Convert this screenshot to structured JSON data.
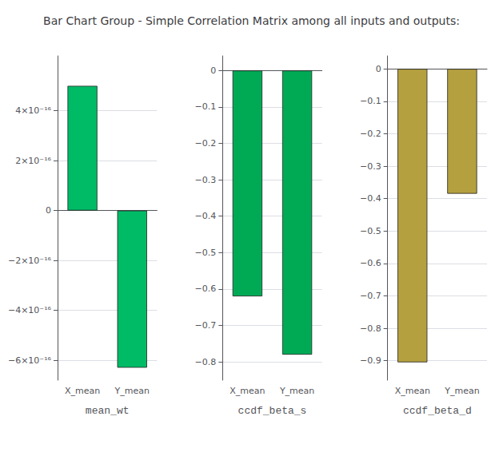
{
  "title": "Bar Chart Group - Simple Correlation Matrix among all inputs and outputs:",
  "chart_data": [
    {
      "type": "bar",
      "xlabel": "mean_wt",
      "categories": [
        "X_mean",
        "Y_mean"
      ],
      "values": [
        5e-16,
        -6.3e-16
      ],
      "color": "#00BB66",
      "ylim": [
        -6.8e-16,
        6.2e-16
      ],
      "yticks": [
        {
          "value": -6e-16,
          "label": "−6×10⁻¹⁶"
        },
        {
          "value": -4e-16,
          "label": "−4×10⁻¹⁶"
        },
        {
          "value": -2e-16,
          "label": "−2×10⁻¹⁶"
        },
        0,
        {
          "value": 2e-16,
          "label": "2×10⁻¹⁶"
        },
        {
          "value": 4e-16,
          "label": "4×10⁻¹⁶"
        }
      ],
      "grid": true
    },
    {
      "type": "bar",
      "xlabel": "ccdf_beta_s",
      "categories": [
        "X_mean",
        "Y_mean"
      ],
      "values": [
        -0.62,
        -0.78
      ],
      "color": "#00AA55",
      "ylim": [
        -0.85,
        0.04
      ],
      "yticks": [
        {
          "value": -0.8,
          "label": "−0.8"
        },
        {
          "value": -0.7,
          "label": "−0.7"
        },
        {
          "value": -0.6,
          "label": "−0.6"
        },
        {
          "value": -0.5,
          "label": "−0.5"
        },
        {
          "value": -0.4,
          "label": "−0.4"
        },
        {
          "value": -0.3,
          "label": "−0.3"
        },
        {
          "value": -0.2,
          "label": "−0.2"
        },
        {
          "value": -0.1,
          "label": "−0.1"
        },
        0
      ],
      "grid": true
    },
    {
      "type": "bar",
      "xlabel": "ccdf_beta_d",
      "categories": [
        "X_mean",
        "Y_mean"
      ],
      "values": [
        -0.905,
        -0.385
      ],
      "color": "#B5A040",
      "ylim": [
        -0.96,
        0.04
      ],
      "yticks": [
        {
          "value": -0.9,
          "label": "−0.9"
        },
        {
          "value": -0.8,
          "label": "−0.8"
        },
        {
          "value": -0.7,
          "label": "−0.7"
        },
        {
          "value": -0.6,
          "label": "−0.6"
        },
        {
          "value": -0.5,
          "label": "−0.5"
        },
        {
          "value": -0.4,
          "label": "−0.4"
        },
        {
          "value": -0.3,
          "label": "−0.3"
        },
        {
          "value": -0.2,
          "label": "−0.2"
        },
        {
          "value": -0.1,
          "label": "−0.1"
        },
        0
      ],
      "grid": true
    }
  ]
}
